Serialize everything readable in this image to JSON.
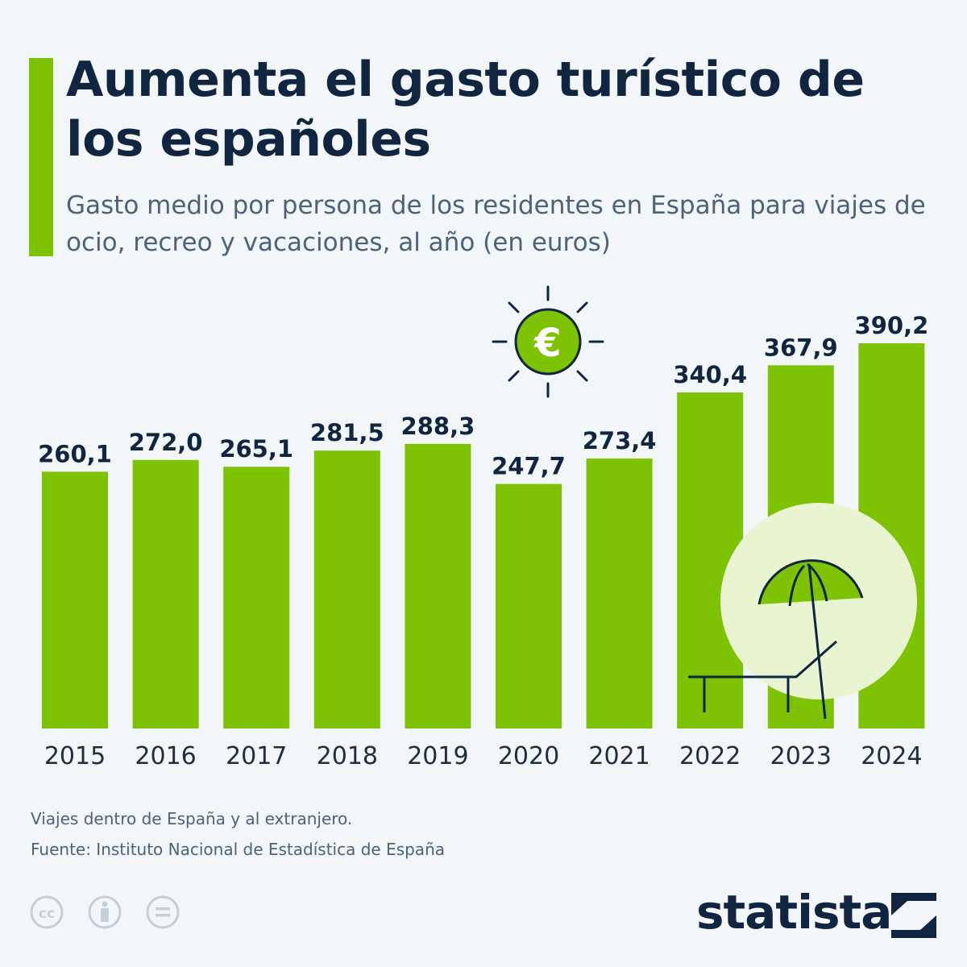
{
  "title": "Aumenta el gasto turístico de los españoles",
  "subtitle": "Gasto medio por persona de los residentes en España para viajes de ocio, recreo y vacaciones, al año (en euros)",
  "footer": {
    "note": "Viajes dentro de España y al extranjero.",
    "source": "Fuente: Instituto Nacional de Estadística de España",
    "brand": "statista"
  },
  "icons": {
    "sun": "euro-sun-icon",
    "beach": "beach-umbrella-lounger-icon",
    "cc": [
      "cc-icon",
      "attribution-icon",
      "no-derivatives-icon"
    ],
    "brand_mark": "statista-logo-icon"
  },
  "colors": {
    "bar": "#7dc303",
    "text_dark": "#0f2540",
    "text_muted": "#4d6278",
    "background": "#f2f6f9",
    "circle_light": "#e9f5d0"
  },
  "chart_data": {
    "type": "bar",
    "title": "Aumenta el gasto turístico de los españoles",
    "xlabel": "",
    "ylabel": "",
    "ylim": [
      0,
      390.2
    ],
    "grid": false,
    "categories": [
      "2015",
      "2016",
      "2017",
      "2018",
      "2019",
      "2020",
      "2021",
      "2022",
      "2023",
      "2024"
    ],
    "values": [
      260.1,
      272.0,
      265.1,
      281.5,
      288.3,
      247.7,
      273.4,
      340.4,
      367.9,
      390.2
    ],
    "value_labels": [
      "260,1",
      "272,0",
      "265,1",
      "281,5",
      "288,3",
      "247,7",
      "273,4",
      "340,4",
      "367,9",
      "390,2"
    ]
  }
}
